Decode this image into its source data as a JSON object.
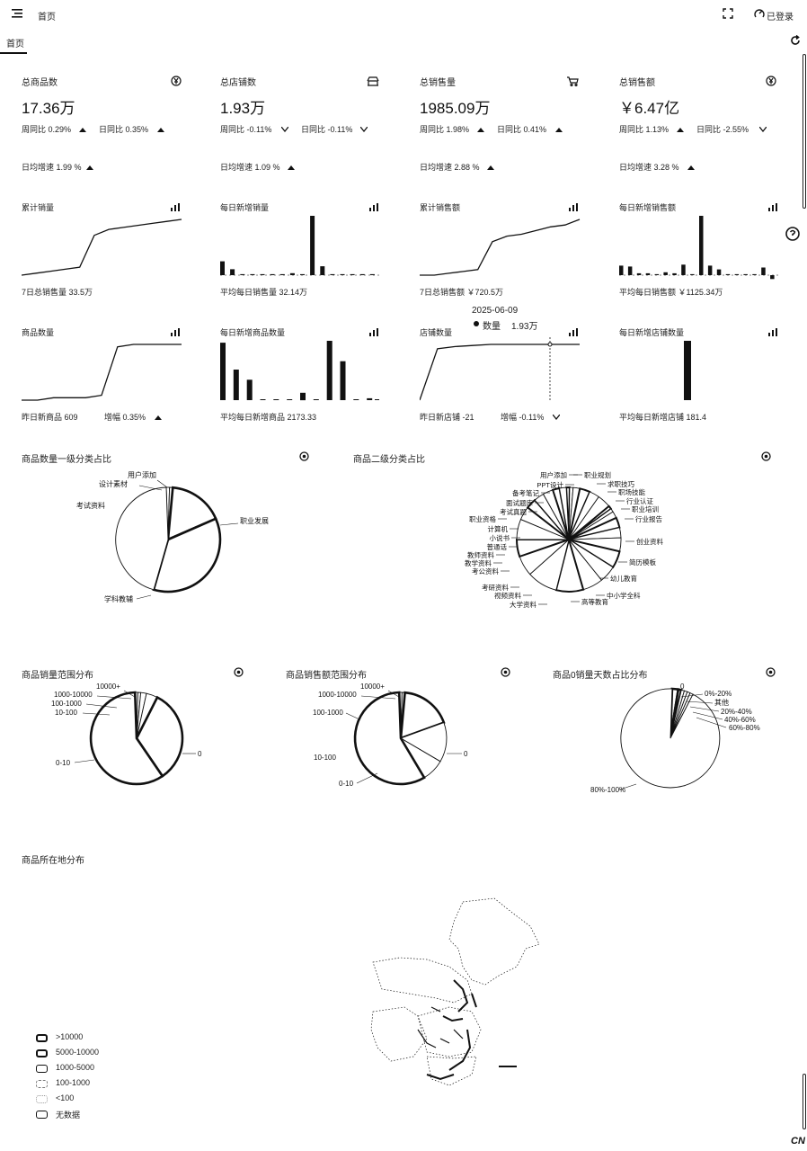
{
  "header": {
    "menu_icon": "menu-icon",
    "home_label": "首页",
    "fullscreen_icon": "fullscreen-icon",
    "login_label": "已登录",
    "tab_home": "首页",
    "refresh_icon": "refresh-icon"
  },
  "kpis": [
    {
      "title": "总商品数",
      "value": "17.36万",
      "wow": "周同比 0.29%",
      "wow_dir": "up",
      "dod": "日同比 0.35%",
      "dod_dir": "up",
      "growth": "日均增速 1.99 %",
      "icon": "yen-icon"
    },
    {
      "title": "总店铺数",
      "value": "1.93万",
      "wow": "周同比 -0.11%",
      "wow_dir": "down",
      "dod": "日同比 -0.11%",
      "dod_dir": "down",
      "growth": "日均增速  1.09 %",
      "icon": "shop-icon"
    },
    {
      "title": "总销售量",
      "value": "1985.09万",
      "wow": "周同比 1.98%",
      "wow_dir": "up",
      "dod": "日同比 0.41%",
      "dod_dir": "up",
      "growth": "日均增速  2.88 %",
      "icon": "cart-icon"
    },
    {
      "title": "总销售额",
      "value": "￥6.47亿",
      "wow": "周同比 1.13%",
      "wow_dir": "up",
      "dod": "日同比 -2.55%",
      "dod_dir": "down",
      "growth": "日均增速 3.28 %",
      "icon": "yen-icon"
    }
  ],
  "mini_charts": [
    {
      "title": "累计销量",
      "type": "line",
      "footer": "7日总销售量  33.5万"
    },
    {
      "title": "每日新增销量",
      "type": "bar",
      "footer": "平均每日销售量  32.14万"
    },
    {
      "title": "累计销售额",
      "type": "line",
      "footer": "7日总销售额  ￥720.5万"
    },
    {
      "title": "每日新增销售额",
      "type": "bar",
      "footer": "平均每日销售额  ￥1125.34万"
    },
    {
      "title": "商品数量",
      "type": "line",
      "footer": "昨日新商品  609",
      "footer2": "增幅 0.35%",
      "footer2_dir": "up"
    },
    {
      "title": "每日新增商品数量",
      "type": "bar",
      "footer": "平均每日新增商品  2173.33"
    },
    {
      "title": "店铺数量",
      "type": "line",
      "footer": "昨日新店铺  -21",
      "footer2": "增幅 -0.11%",
      "footer2_dir": "down"
    },
    {
      "title": "每日新增店铺数量",
      "type": "bar",
      "footer": "平均每日新增店铺  181.4"
    }
  ],
  "tooltip": {
    "date": "2025-06-09",
    "label": "数量",
    "value": "1.93万"
  },
  "chart_data": [
    {
      "type": "line",
      "title": "累计销量",
      "values": [
        10,
        11,
        12,
        13,
        14,
        30,
        33,
        34,
        35,
        36,
        37,
        38
      ]
    },
    {
      "type": "bar",
      "title": "每日新增销量",
      "values": [
        14,
        6,
        1,
        1,
        1,
        1,
        1,
        2,
        1,
        60,
        9,
        1,
        1,
        1,
        1,
        1
      ]
    },
    {
      "type": "line",
      "title": "累计销售额",
      "values": [
        10,
        10,
        11,
        12,
        13,
        28,
        31,
        32,
        34,
        36,
        37,
        40
      ]
    },
    {
      "type": "bar",
      "title": "每日新增销售额",
      "values": [
        10,
        9,
        2,
        2,
        1,
        3,
        2,
        11,
        1,
        62,
        10,
        6,
        1,
        1,
        1,
        1,
        8,
        -4
      ]
    },
    {
      "type": "line",
      "title": "商品数量",
      "values": [
        10,
        10,
        11,
        11,
        11,
        12,
        32,
        33,
        33,
        33,
        33
      ]
    },
    {
      "type": "bar",
      "title": "每日新增商品数量",
      "values": [
        62,
        33,
        22,
        0,
        0,
        0,
        8,
        0,
        64,
        42,
        0,
        2
      ]
    },
    {
      "type": "line",
      "title": "店铺数量",
      "values": [
        2,
        50,
        52,
        53,
        54,
        54,
        54,
        54,
        54,
        54
      ]
    },
    {
      "type": "bar",
      "title": "每日新增店铺数量",
      "values": [
        60
      ]
    },
    {
      "type": "pie",
      "title": "商品数量一级分类占比",
      "labels": [
        "用户添加",
        "设计素材",
        "考试资料",
        "职业发展",
        "学科教辅"
      ],
      "values": [
        1,
        1,
        17,
        36,
        45
      ]
    },
    {
      "type": "pie",
      "title": "商品二级分类占比",
      "labels": [
        "用户添加",
        "PPT设计",
        "备考笔记",
        "面试题库",
        "考试真题",
        "职业资格",
        "计算机",
        "小说书",
        "普通话",
        "教师资料",
        "教学资料",
        "考公资料",
        "考研资料",
        "视频资料",
        "大学资料",
        "高等教育",
        "中小学全科",
        "幼儿教育",
        "简历模板",
        "创业资料",
        "行业报告",
        "职业培训",
        "行业认证",
        "职场技能",
        "求职技巧",
        "职业规划"
      ],
      "values": [
        1,
        1,
        2,
        3,
        3,
        4,
        1,
        1,
        2,
        3,
        3,
        4,
        5,
        5,
        6,
        8,
        9,
        6,
        5,
        6,
        4,
        3,
        3,
        3,
        2,
        2
      ]
    },
    {
      "type": "pie",
      "title": "商品销量范围分布",
      "labels": [
        "10000+",
        "1000-10000",
        "100-1000",
        "10-100",
        "0-10",
        "0"
      ],
      "values": [
        1,
        1,
        2,
        4,
        33,
        59
      ]
    },
    {
      "type": "pie",
      "title": "商品销售额范围分布",
      "labels": [
        "10000+",
        "1000-10000",
        "100-1000",
        "10-100",
        "0-10",
        "0"
      ],
      "values": [
        1,
        1,
        18,
        14,
        8,
        58
      ]
    },
    {
      "type": "pie",
      "title": "商品0销量天数占比分布",
      "labels": [
        "0",
        "0%-20%",
        "其他",
        "20%-40%",
        "40%-60%",
        "60%-80%",
        "80%-100%"
      ],
      "values": [
        2,
        1,
        1,
        1,
        1,
        1,
        93
      ]
    }
  ],
  "pie_titles": [
    "商品数量一级分类占比",
    "商品二级分类占比",
    "商品销量范围分布",
    "商品销售额范围分布",
    "商品0销量天数占比分布"
  ],
  "map": {
    "title": "商品所在地分布",
    "legend": [
      ">10000",
      "5000-10000",
      "1000-5000",
      "100-1000",
      "<100",
      "无数据"
    ]
  },
  "lang": "CN"
}
